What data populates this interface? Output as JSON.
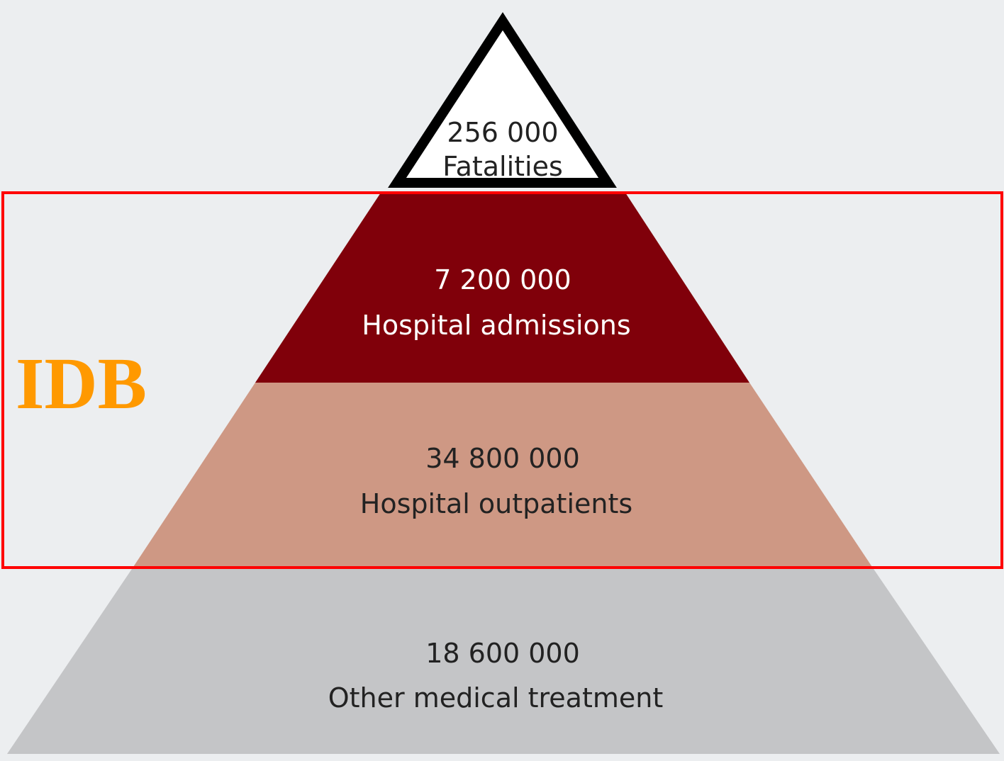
{
  "levels": [
    {
      "value": "256 000",
      "label": "Fatalities"
    },
    {
      "value": "7 200 000",
      "label": "Hospital admissions"
    },
    {
      "value": "34 800 000",
      "label": "Hospital outpatients"
    },
    {
      "value": "18 600 000",
      "label": "Other medical treatment"
    }
  ],
  "annotation": "IDB"
}
